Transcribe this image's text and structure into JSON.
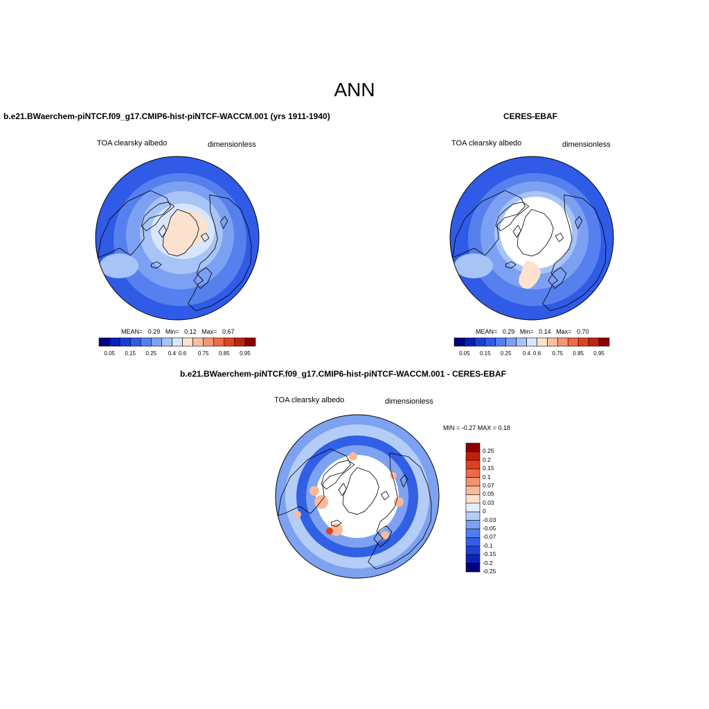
{
  "title": "ANN",
  "colors": {
    "seq": [
      "#00007f",
      "#0a1fb8",
      "#1a3fd9",
      "#2f5be6",
      "#5580ee",
      "#7da1f2",
      "#a8c3f6",
      "#d7e6fb",
      "#fde2cf",
      "#f9bea1",
      "#f59677",
      "#ef6a48",
      "#e3421f",
      "#c02410",
      "#8b0000"
    ],
    "diff": [
      "#00007f",
      "#0c22b6",
      "#1f3fd6",
      "#3160e4",
      "#4f7deb",
      "#7ea2f2",
      "#b3cdf7",
      "#e6effc",
      "#fde1cf",
      "#fab99a",
      "#f59272",
      "#ee6a4c",
      "#e04020",
      "#bf200c",
      "#8b0000"
    ],
    "land_fill": "#ffffff",
    "coast": "#000000"
  },
  "panels": {
    "model": {
      "title": "b.e21.BWaerchem-piNTCF.f09_g17.CMIP6-hist-piNTCF-WACCM.001 (yrs 1911-1940)",
      "variable": "TOA clearsky albedo",
      "units": "dimensionless",
      "stats": {
        "mean_label": "MEAN=",
        "mean": "0.29",
        "min_label": "Min=",
        "min": "0.12",
        "max_label": "Max=",
        "max": "0.67"
      }
    },
    "obs": {
      "title": "CERES-EBAF",
      "variable": "TOA clearsky albedo",
      "units": "dimensionless",
      "stats": {
        "mean_label": "MEAN=",
        "mean": "0.29",
        "min_label": "Min=",
        "min": "0.14",
        "max_label": "Max=",
        "max": "0.70"
      }
    },
    "diff": {
      "title": "b.e21.BWaerchem-piNTCF.f09_g17.CMIP6-hist-piNTCF-WACCM.001 - CERES-EBAF",
      "variable": "TOA clearsky albedo",
      "units": "dimensionless",
      "minmax": "MIN =  -0.27 MAX =   0.18"
    }
  },
  "colorbar_seq_ticks": [
    "0.05",
    "0.15",
    "0.25",
    "0.4",
    "0.6",
    "0.75",
    "0.85",
    "0.95"
  ],
  "colorbar_diff_ticks": [
    "0.25",
    "0.2",
    "0.15",
    "0.1",
    "0.07",
    "0.05",
    "0.03",
    "0",
    "-0.03",
    "-0.05",
    "-0.07",
    "-0.1",
    "-0.15",
    "-0.2",
    "-0.25"
  ]
}
